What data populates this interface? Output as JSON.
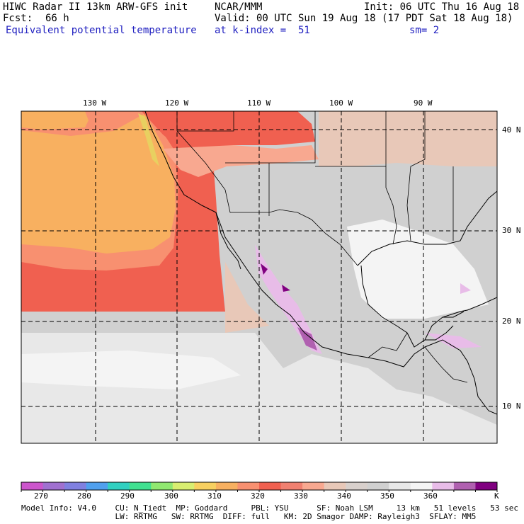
{
  "header": {
    "title": "HIWC Radar II 13km ARW-GFS init",
    "org": "NCAR/MMM",
    "init": "Init: 06 UTC Thu 16 Aug 18",
    "fcst_label": "Fcst:",
    "fcst_value": "66 h",
    "valid": "Valid: 00 UTC Sun 19 Aug 18 (17 PDT Sat 18 Aug 18)",
    "field": "Equivalent potential temperature",
    "level": "at k-index =  51",
    "smooth": "sm= 2"
  },
  "axes": {
    "lon_labels": [
      "130 W",
      "120 W",
      "110 W",
      "100 W",
      "90 W"
    ],
    "lat_labels": [
      "40 N",
      "30 N",
      "20 N",
      "10 N"
    ]
  },
  "colorbar": {
    "ticks": [
      "270",
      "280",
      "290",
      "300",
      "310",
      "320",
      "330",
      "340",
      "350",
      "360"
    ],
    "unit": "K",
    "colors": [
      "#cc55cc",
      "#a070d0",
      "#8080e0",
      "#50a0ee",
      "#30d0c0",
      "#40e090",
      "#90e870",
      "#d8ee70",
      "#f8d060",
      "#f8b060",
      "#f89070",
      "#f06050",
      "#f08070",
      "#f8a890",
      "#e8c8b8",
      "#d8d0cc",
      "#d0d0d0",
      "#e8e8e8",
      "#f4f4f4",
      "#e8bce8",
      "#b060b0",
      "#800080"
    ]
  },
  "footer": {
    "line1": "Model Info: V4.0    CU: N_Tiedt  MP: Goddard     PBL: YSU      SF: Noah LSM     13 km   51 levels   53 sec",
    "line2": "                    LW: RRTMG   SW: RRTMG  DIFF: full   KM: 2D Smagor DAMP: Rayleigh3  SFLAY: MM5"
  }
}
